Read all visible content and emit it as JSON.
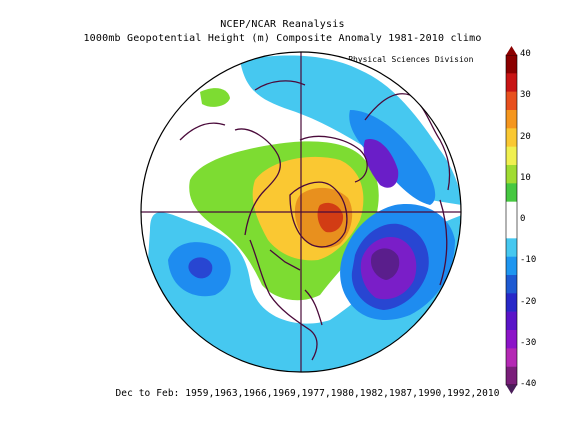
{
  "title_line1": "NCEP/NCAR Reanalysis",
  "title_line2": "1000mb Geopotential Height (m) Composite Anomaly 1981-2010 climo",
  "credit": "NOAA/ESRL Physical Sciences Division",
  "footer": "Dec to Feb: 1959,1963,1966,1969,1977,1980,1982,1987,1990,1992,2010",
  "colorbar": {
    "labels": [
      "40",
      "30",
      "20",
      "10",
      "0",
      "-10",
      "-20",
      "-30",
      "-40"
    ],
    "colors": [
      "#8b0000",
      "#c81414",
      "#e8501e",
      "#f5961e",
      "#fac832",
      "#f0f050",
      "#a0dc32",
      "#46c841",
      "#ffffff",
      "#ffffff",
      "#46c8f0",
      "#1e96f0",
      "#1e5ad2",
      "#2828c8",
      "#5a14c8",
      "#8c14c8",
      "#b428b4",
      "#7a1e7a"
    ]
  },
  "map": {
    "projection": "north polar stereographic",
    "anomaly_colors": {
      "pos_10_20": "#7ddc32",
      "pos_20_30": "#fac832",
      "pos_30_40": "#e85a1e",
      "pos_40": "#c81e14",
      "neg_0_10": "#46c8f0",
      "neg_10_20": "#1e8cf0",
      "neg_20_30": "#2846d2",
      "neg_30_40": "#6a1ec8",
      "neg_40": "#4a1e7a"
    }
  }
}
